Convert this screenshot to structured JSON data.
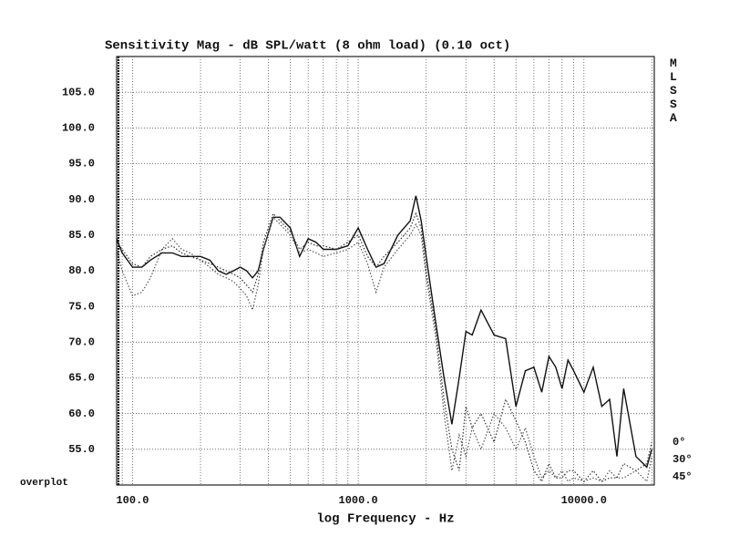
{
  "chart_data": {
    "type": "line",
    "title": "Sensitivity Mag - dB SPL/watt (8 ohm load) (0.10 oct)",
    "x_label": "log Frequency - Hz",
    "side_label": "MLSSA",
    "annotation": "overplot",
    "xlog": true,
    "grid": true,
    "xlim": [
      85,
      20500
    ],
    "ylim": [
      50,
      110
    ],
    "xticks": [
      {
        "value": 100,
        "label": "100.0"
      },
      {
        "value": 1000,
        "label": "1000.0"
      },
      {
        "value": 10000,
        "label": "10000.0"
      }
    ],
    "yticks": [
      {
        "value": 55,
        "label": "55.0"
      },
      {
        "value": 60,
        "label": "60.0"
      },
      {
        "value": 65,
        "label": "65.0"
      },
      {
        "value": 70,
        "label": "70.0"
      },
      {
        "value": 75,
        "label": "75.0"
      },
      {
        "value": 80,
        "label": "80.0"
      },
      {
        "value": 85,
        "label": "85.0"
      },
      {
        "value": 90,
        "label": "90.0"
      },
      {
        "value": 95,
        "label": "95.0"
      },
      {
        "value": 100,
        "label": "100.0"
      },
      {
        "value": 105,
        "label": "105.0"
      }
    ],
    "x": [
      85,
      90,
      100,
      110,
      120,
      135,
      150,
      165,
      180,
      200,
      220,
      240,
      260,
      280,
      300,
      320,
      340,
      360,
      380,
      420,
      450,
      500,
      550,
      600,
      650,
      700,
      800,
      900,
      1000,
      1100,
      1200,
      1300,
      1500,
      1700,
      1800,
      1900,
      2000,
      2200,
      2400,
      2600,
      2800,
      3000,
      3200,
      3500,
      4000,
      4500,
      5000,
      5500,
      6000,
      6500,
      7000,
      7500,
      8000,
      8500,
      9000,
      10000,
      11000,
      12000,
      13000,
      14000,
      15000,
      17000,
      19000,
      20000
    ],
    "series": [
      {
        "name": "0°",
        "color": "#111111",
        "style": "solid",
        "values": [
          84.5,
          82.5,
          80.5,
          80.5,
          81.5,
          82.5,
          82.5,
          82,
          82,
          82,
          81.5,
          80,
          79.5,
          80,
          80.5,
          80,
          79,
          80,
          83,
          87.5,
          87.5,
          86,
          82,
          84.5,
          84,
          83,
          83,
          83.5,
          86,
          83,
          80.5,
          81,
          85,
          87,
          90.5,
          87,
          82,
          73,
          65,
          58.5,
          65,
          71.5,
          71,
          74.5,
          71,
          70.5,
          61,
          66,
          66.5,
          63,
          68,
          66.5,
          63.5,
          67.5,
          66,
          63,
          66.5,
          61,
          62,
          54,
          63.5,
          54,
          52.5,
          55
        ]
      },
      {
        "name": "30°",
        "color": "#333333",
        "style": "dotted",
        "values": [
          84,
          83,
          81,
          80.5,
          82,
          83,
          83.5,
          82.5,
          82,
          81.5,
          81,
          80.5,
          80,
          79.5,
          79,
          78,
          77,
          79.5,
          84,
          88,
          87,
          85.5,
          83,
          84,
          83.5,
          83.5,
          83,
          84,
          85,
          82,
          80.5,
          82,
          84,
          86,
          88,
          86,
          80,
          72,
          62,
          55,
          52,
          61,
          58,
          60,
          56,
          62,
          59,
          56,
          52,
          50.5,
          53,
          51,
          51,
          52,
          52,
          50.5,
          52,
          50.5,
          51,
          51,
          53,
          52,
          53,
          56
        ]
      },
      {
        "name": "45°",
        "color": "#555555",
        "style": "dotted",
        "values": [
          83,
          80,
          76.5,
          77,
          79,
          83,
          84.5,
          83,
          82.5,
          81.5,
          80.5,
          79.5,
          79,
          78.5,
          77.5,
          76.5,
          74.5,
          78,
          83,
          87.5,
          86.5,
          85,
          82.5,
          83,
          82.5,
          82,
          82.5,
          83,
          84,
          81,
          77,
          80.5,
          83,
          85,
          86.5,
          85,
          79,
          71,
          60,
          52,
          57,
          54,
          58,
          55,
          60,
          58,
          55,
          58,
          54,
          51,
          52,
          51,
          52,
          50.5,
          51,
          50.5,
          51,
          50.5,
          52,
          51,
          51,
          52,
          50.5,
          54
        ]
      }
    ]
  }
}
